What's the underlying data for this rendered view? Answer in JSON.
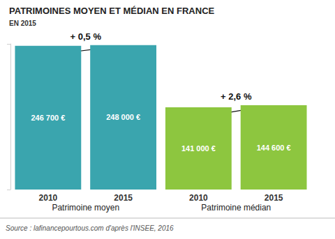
{
  "chart_data": {
    "type": "bar",
    "title": "PATRIMOINES MOYEN ET MÉDIAN EN FRANCE",
    "subtitle": "EN 2015",
    "source": "Source : lafinancepourtous.com d'après l'INSEE, 2016",
    "categories": [
      "2010",
      "2015",
      "2010",
      "2015"
    ],
    "series": [
      {
        "name": "Patrimoine moyen",
        "color": "#3aa5ae",
        "values": [
          246700,
          248000,
          null,
          null
        ],
        "value_labels": [
          "246 700 €",
          "248 000 €",
          null,
          null
        ]
      },
      {
        "name": "Patrimoine médian",
        "color": "#8dc63f",
        "values": [
          null,
          null,
          141000,
          144600
        ],
        "value_labels": [
          null,
          null,
          "141 000 €",
          "144 600 €"
        ]
      }
    ],
    "annotations": [
      {
        "text": "+ 0,5 %",
        "from": 0,
        "to": 1
      },
      {
        "text": "+ 2,6 %",
        "from": 2,
        "to": 3
      }
    ],
    "ylim": [
      0,
      250000
    ],
    "yticks": [
      0,
      250000
    ],
    "grid": false,
    "data_labels": true,
    "tick_labels": "x"
  }
}
